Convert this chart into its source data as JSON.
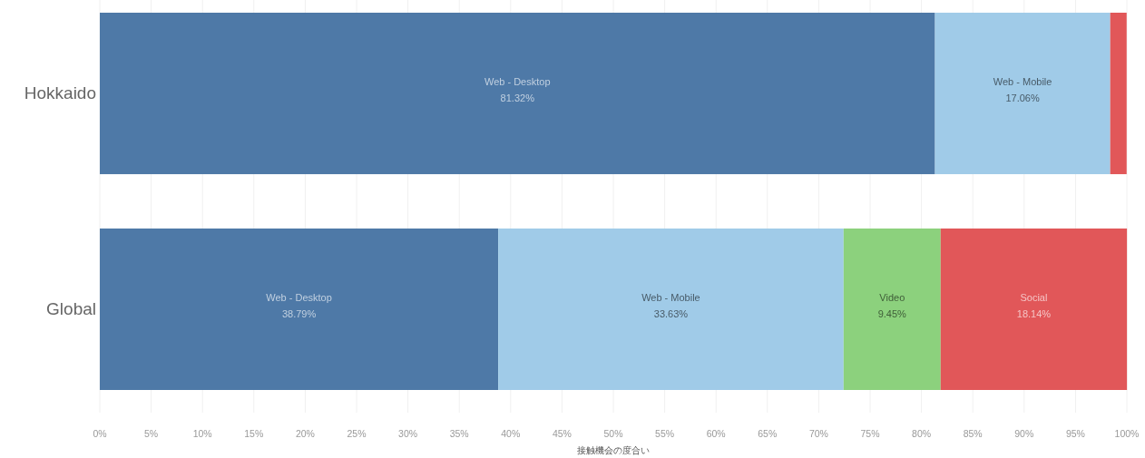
{
  "chart_data": {
    "type": "bar",
    "orientation": "horizontal",
    "stacked": true,
    "xlabel": "接触機会の度合い",
    "categories": [
      "Hokkaido",
      "Global"
    ],
    "series": [
      {
        "name": "Web - Desktop",
        "color": "#4e79a7",
        "values": [
          81.32,
          38.79
        ],
        "value_labels": [
          "81.32%",
          "38.79%"
        ]
      },
      {
        "name": "Web - Mobile",
        "color": "#a0cbe8",
        "values": [
          17.06,
          33.63
        ],
        "value_labels": [
          "17.06%",
          "33.63%"
        ]
      },
      {
        "name": "Video",
        "color": "#8cd17d",
        "values": [
          null,
          9.45
        ],
        "value_labels": [
          null,
          "9.45%"
        ]
      },
      {
        "name": "Social",
        "color": "#e15759",
        "values": [
          1.6,
          18.14
        ],
        "value_labels": [
          null,
          "18.14%"
        ]
      }
    ],
    "xlim": [
      0,
      100
    ],
    "xticks": [
      {
        "value": 0,
        "label": "0%"
      },
      {
        "value": 5,
        "label": "5%"
      },
      {
        "value": 10,
        "label": "10%"
      },
      {
        "value": 15,
        "label": "15%"
      },
      {
        "value": 20,
        "label": "20%"
      },
      {
        "value": 25,
        "label": "25%"
      },
      {
        "value": 30,
        "label": "30%"
      },
      {
        "value": 35,
        "label": "35%"
      },
      {
        "value": 40,
        "label": "40%"
      },
      {
        "value": 45,
        "label": "45%"
      },
      {
        "value": 50,
        "label": "50%"
      },
      {
        "value": 55,
        "label": "55%"
      },
      {
        "value": 60,
        "label": "60%"
      },
      {
        "value": 65,
        "label": "65%"
      },
      {
        "value": 70,
        "label": "70%"
      },
      {
        "value": 75,
        "label": "75%"
      },
      {
        "value": 80,
        "label": "80%"
      },
      {
        "value": 85,
        "label": "85%"
      },
      {
        "value": 90,
        "label": "90%"
      },
      {
        "value": 95,
        "label": "95%"
      },
      {
        "value": 100,
        "label": "100%"
      }
    ],
    "grid": "x",
    "legend": false
  }
}
